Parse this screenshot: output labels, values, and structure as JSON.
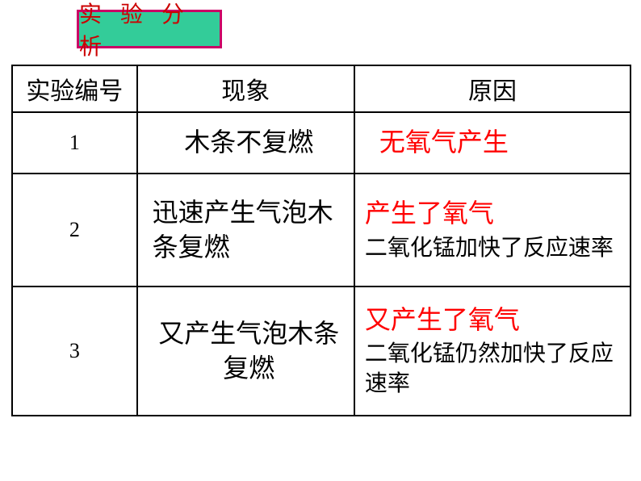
{
  "title": "实 验 分 析",
  "headers": {
    "col1": "实验编号",
    "col2": "现象",
    "col3": "原因"
  },
  "rows": [
    {
      "num": "1",
      "phenomenon": "木条不复燃",
      "reason_red": "无氧气产生",
      "reason_black": ""
    },
    {
      "num": "2",
      "phenomenon": "迅速产生气泡木条复燃",
      "reason_red": "产生了氧气",
      "reason_black": "二氧化锰加快了反应速率"
    },
    {
      "num": "3",
      "phenomenon": "又产生气泡木条复燃",
      "reason_red": "又产生了氧气",
      "reason_black": "二氧化锰仍然加快了反应速率"
    }
  ],
  "colors": {
    "title_bg": "#33cc99",
    "title_border": "#cc0066",
    "title_text": "#cc0000",
    "reason_highlight": "#ff0000",
    "text": "#000000",
    "border": "#000000",
    "background": "#ffffff"
  }
}
